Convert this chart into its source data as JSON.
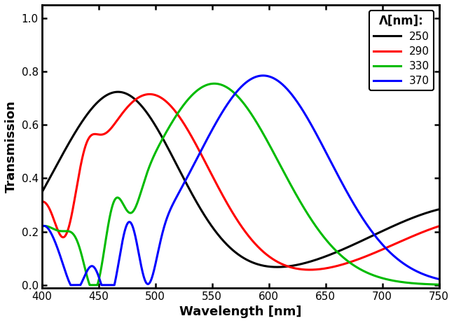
{
  "xlabel": "Wavelength [nm]",
  "ylabel": "Transmission",
  "xlim": [
    400,
    750
  ],
  "ylim": [
    -0.01,
    1.05
  ],
  "yticks": [
    0.0,
    0.2,
    0.4,
    0.6,
    0.8,
    1.0
  ],
  "xticks": [
    400,
    450,
    500,
    550,
    600,
    650,
    700,
    750
  ],
  "legend_title": "Λ[nm]:",
  "linewidth": 2.2,
  "figsize": [
    6.48,
    4.61
  ],
  "dpi": 100,
  "series": [
    {
      "label": "250",
      "color": "#000000"
    },
    {
      "label": "290",
      "color": "#ff0000"
    },
    {
      "label": "330",
      "color": "#00bb00"
    },
    {
      "label": "370",
      "color": "#0000ff"
    }
  ]
}
